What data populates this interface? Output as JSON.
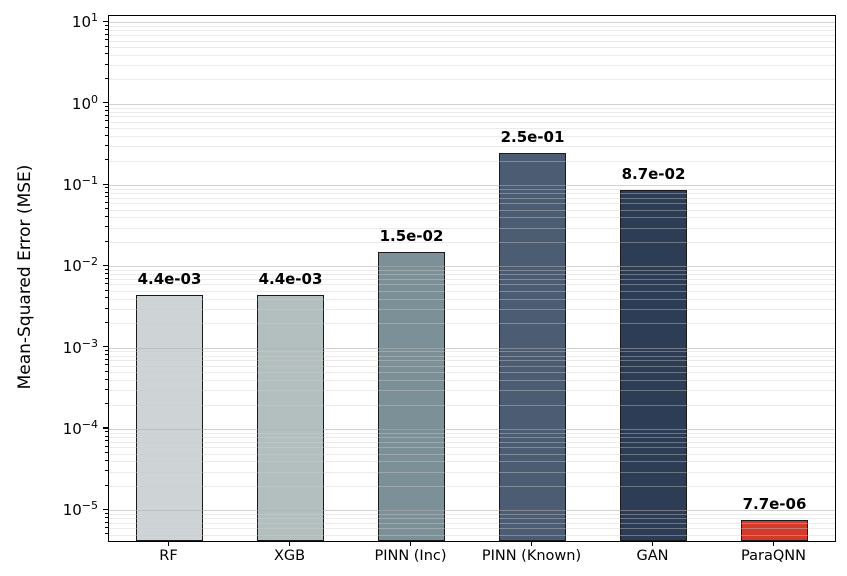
{
  "chart_data": {
    "type": "bar",
    "title": "",
    "xlabel": "",
    "ylabel": "Mean-Squared Error (MSE)",
    "yscale": "log",
    "ylim": [
      4.2e-06,
      12
    ],
    "categories": [
      "RF",
      "XGB",
      "PINN (Inc)",
      "PINN (Known)",
      "GAN",
      "ParaQNN"
    ],
    "values": [
      0.0044,
      0.0044,
      0.015,
      0.25,
      0.087,
      7.7e-06
    ],
    "value_labels": [
      "4.4e-03",
      "4.4e-03",
      "1.5e-02",
      "2.5e-01",
      "8.7e-02",
      "7.7e-06"
    ],
    "bar_colors": [
      "#ced3d5",
      "#b3bfbe",
      "#7c9097",
      "#4b5c73",
      "#2d3d55",
      "#d23b2c"
    ],
    "bar_edge_color": "#1a1a1a",
    "y_tick_exponents": [
      -5,
      -4,
      -3,
      -2,
      -1,
      0,
      1
    ],
    "grid": true,
    "legend": false,
    "background_color": "#ffffff"
  }
}
